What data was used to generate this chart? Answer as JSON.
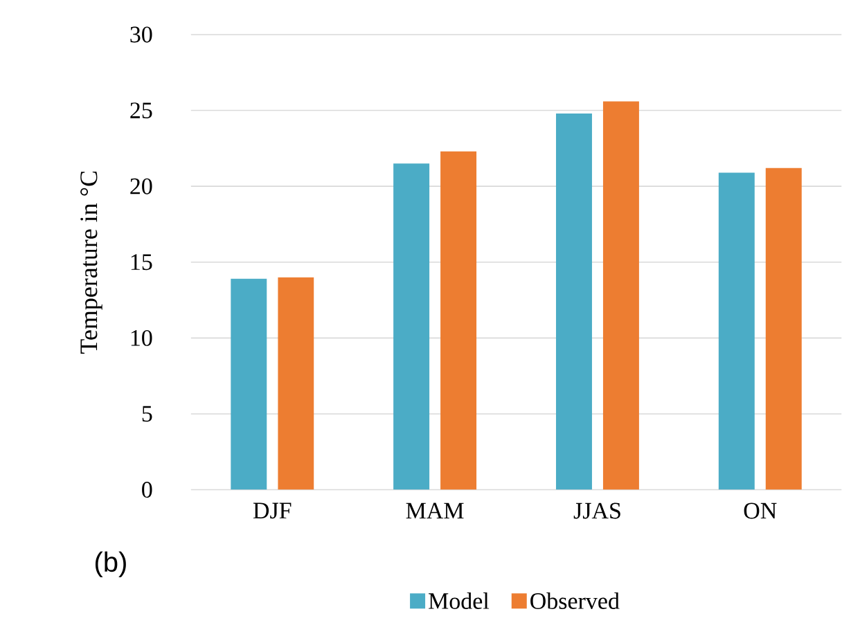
{
  "chart_data": {
    "type": "bar",
    "ylabel": "Temperature in °C",
    "categories": [
      "DJF",
      "MAM",
      "JJAS",
      "ON"
    ],
    "series": [
      {
        "name": "Model",
        "color": "#4bacc6",
        "values": [
          13.9,
          21.5,
          24.8,
          20.9
        ]
      },
      {
        "name": "Observed",
        "color": "#ed7d31",
        "values": [
          14.0,
          22.3,
          25.6,
          21.2
        ]
      }
    ],
    "ylim": [
      0,
      30
    ],
    "yticks": [
      0,
      5,
      10,
      15,
      20,
      25,
      30
    ],
    "grid": "y",
    "legend": "bottom",
    "annotations": [
      "(b)"
    ]
  }
}
